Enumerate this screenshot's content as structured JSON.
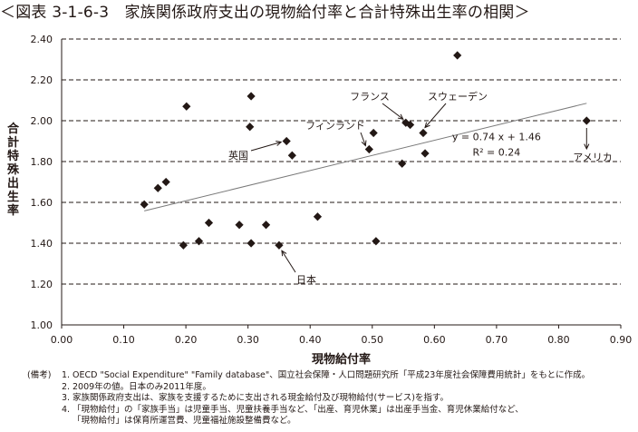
{
  "title": "＜図表 3-1-6-3　家族関係政府支出の現物給付率と合計特殊出生率の相関＞",
  "chart_data": {
    "type": "scatter",
    "xlabel": "現物給付率",
    "ylabel": "合計特殊出生率",
    "xlim": [
      0.0,
      0.9
    ],
    "ylim": [
      1.0,
      2.4
    ],
    "xticks": [
      "0.00",
      "0.10",
      "0.20",
      "0.30",
      "0.40",
      "0.50",
      "0.60",
      "0.70",
      "0.80",
      "0.90"
    ],
    "yticks": [
      "1.00",
      "1.20",
      "1.40",
      "1.60",
      "1.80",
      "2.00",
      "2.20",
      "2.40"
    ],
    "grid": "horizontal dashed",
    "points": [
      {
        "x": 0.133,
        "y": 1.59
      },
      {
        "x": 0.155,
        "y": 1.67
      },
      {
        "x": 0.168,
        "y": 1.7
      },
      {
        "x": 0.196,
        "y": 1.39
      },
      {
        "x": 0.201,
        "y": 2.07
      },
      {
        "x": 0.221,
        "y": 1.41
      },
      {
        "x": 0.237,
        "y": 1.5
      },
      {
        "x": 0.286,
        "y": 1.49
      },
      {
        "x": 0.303,
        "y": 1.97
      },
      {
        "x": 0.305,
        "y": 2.12
      },
      {
        "x": 0.305,
        "y": 1.4
      },
      {
        "x": 0.329,
        "y": 1.49
      },
      {
        "x": 0.35,
        "y": 1.39
      },
      {
        "x": 0.362,
        "y": 1.9
      },
      {
        "x": 0.371,
        "y": 1.83
      },
      {
        "x": 0.412,
        "y": 1.53
      },
      {
        "x": 0.495,
        "y": 1.86
      },
      {
        "x": 0.502,
        "y": 1.94
      },
      {
        "x": 0.506,
        "y": 1.41
      },
      {
        "x": 0.548,
        "y": 1.79
      },
      {
        "x": 0.554,
        "y": 1.99
      },
      {
        "x": 0.561,
        "y": 1.98
      },
      {
        "x": 0.582,
        "y": 1.94
      },
      {
        "x": 0.585,
        "y": 1.84
      },
      {
        "x": 0.637,
        "y": 2.32
      },
      {
        "x": 0.845,
        "y": 2.0
      }
    ],
    "trendline": {
      "equation": "y = 0.74 x + 1.46",
      "r2": "R² = 0.24",
      "slope": 0.74,
      "intercept": 1.46,
      "x_from": 0.133,
      "x_to": 0.845
    },
    "annotations": [
      {
        "text": "フランス",
        "x": 0.554,
        "y": 1.99
      },
      {
        "text": "スウェーデン",
        "x": 0.582,
        "y": 1.94
      },
      {
        "text": "フィンランド",
        "x": 0.495,
        "y": 1.86
      },
      {
        "text": "英国",
        "x": 0.362,
        "y": 1.9
      },
      {
        "text": "日本",
        "x": 0.35,
        "y": 1.39
      },
      {
        "text": "アメリカ",
        "x": 0.845,
        "y": 2.0
      }
    ]
  },
  "notes": {
    "head": "(備考)",
    "items": [
      {
        "num": "1.",
        "text": "OECD \"Social Expenditure\" \"Family database\"、国立社会保障・人口問題研究所「平成23年度社会保障費用統計」をもとに作成。"
      },
      {
        "num": "2.",
        "text": "2009年の値。日本のみ2011年度。"
      },
      {
        "num": "3.",
        "text": "家族関係政府支出は、家族を支援するために支出される現金給付及び現物給付(サービス)を指す。"
      },
      {
        "num": "4.",
        "text": "「現物給付」の「家族手当」は児童手当、児童扶養手当など、「出産、育児休業」は出産手当金、育児休業給付など、"
      },
      {
        "num": "",
        "text": "「現物給付」は保育所運営費、児童福祉施設整備費など。"
      }
    ]
  }
}
